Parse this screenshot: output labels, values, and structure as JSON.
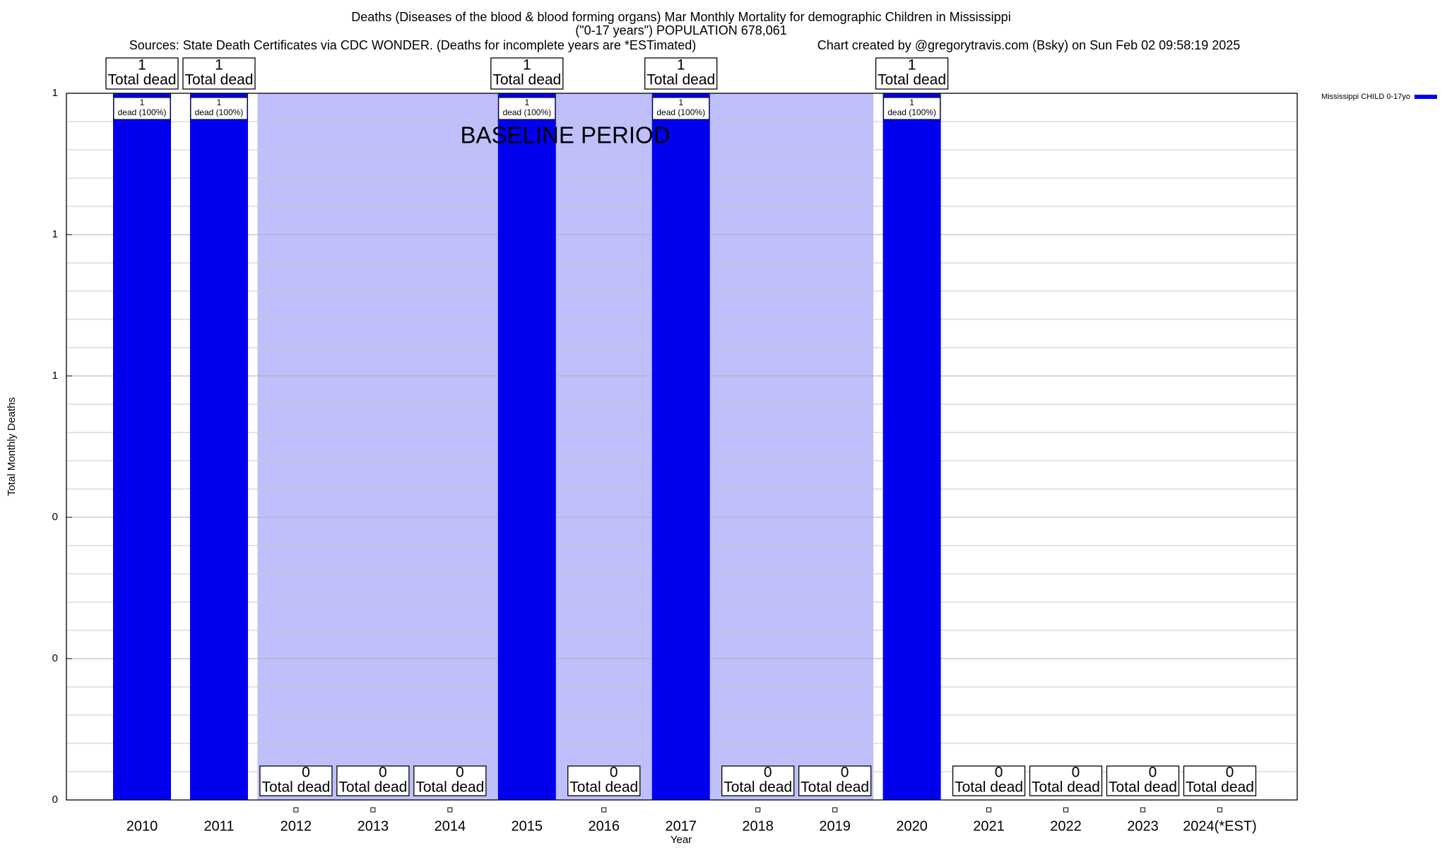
{
  "chart_data": {
    "type": "bar",
    "title": "Deaths (Diseases of the blood & blood forming organs) Mar Monthly Mortality for demographic Children in Mississippi",
    "subtitle": "(\"0-17 years\") POPULATION 678,061",
    "source": "Sources: State Death Certificates via CDC WONDER. (Deaths for incomplete years are *ESTimated)",
    "credit": "Chart created by @gregorytravis.com (Bsky) on Sun Feb 02 09:58:19 2025",
    "x_label": "Year",
    "y_label": "Total Monthly Deaths",
    "categories": [
      "2010",
      "2011",
      "2012",
      "2013",
      "2014",
      "2015",
      "2016",
      "2017",
      "2018",
      "2019",
      "2020",
      "2021",
      "2022",
      "2023",
      "2024(*EST)"
    ],
    "series": [
      {
        "name": "Mississippi CHILD 0-17yo",
        "color": "#0000ee",
        "values": [
          1,
          1,
          0,
          0,
          0,
          1,
          0,
          1,
          0,
          0,
          1,
          0,
          0,
          0,
          0
        ]
      }
    ],
    "total_label": "Total dead",
    "share_label": "dead (100%)",
    "baseline": {
      "label": "BASELINE PERIOD",
      "start": "2012",
      "end": "2019",
      "color": "#bfbffb"
    },
    "ylim": [
      0,
      1
    ],
    "yticks": [
      0,
      {
        "value": 0.2,
        "label": "0"
      },
      {
        "value": 0.4,
        "label": "0"
      },
      {
        "value": 0.6,
        "label": "1"
      },
      {
        "value": 0.8,
        "label": "1"
      },
      1
    ],
    "grid": true,
    "legend": "top-right"
  }
}
